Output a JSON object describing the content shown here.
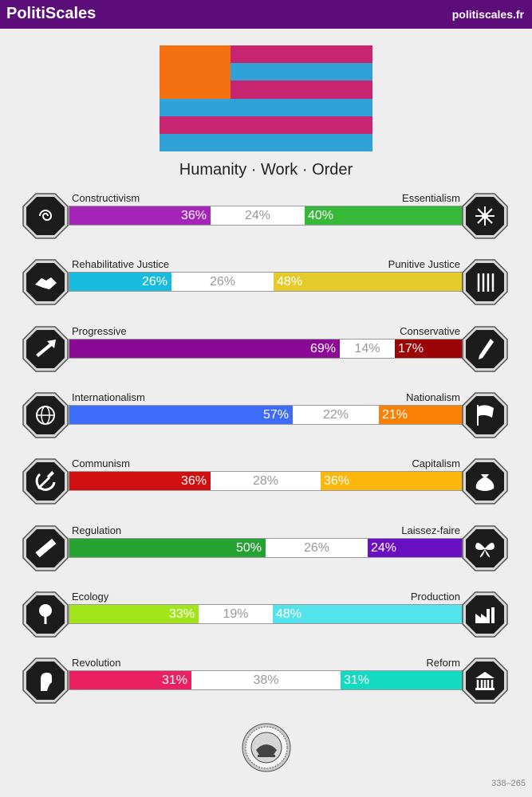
{
  "header": {
    "brand": "PolitiScales",
    "site": "politiscales.fr"
  },
  "flag": {
    "stripes": [
      "#c7256f",
      "#31a2d8",
      "#c7256f",
      "#31a2d8",
      "#c7256f",
      "#31a2d8"
    ],
    "canton": "#f57010"
  },
  "ideology_title": "Humanity · Work · Order",
  "axes": [
    {
      "left_label": "Constructivism",
      "right_label": "Essentialism",
      "left_value": 36,
      "neutral_value": 24,
      "right_value": 40,
      "left_text": "36%",
      "neutral_text": "24%",
      "right_text": "40%",
      "left_color": "#a425b8",
      "right_color": "#36b838",
      "left_icon": "mind-spiral-icon",
      "right_icon": "flower-dna-icon"
    },
    {
      "left_label": "Rehabilitative Justice",
      "right_label": "Punitive Justice",
      "left_value": 26,
      "neutral_value": 26,
      "right_value": 48,
      "left_text": "26%",
      "neutral_text": "26%",
      "right_text": "48%",
      "left_color": "#17bbe0",
      "right_color": "#e4cb29",
      "left_icon": "handshake-icon",
      "right_icon": "prison-bars-icon"
    },
    {
      "left_label": "Progressive",
      "right_label": "Conservative",
      "left_value": 69,
      "neutral_value": 14,
      "right_value": 17,
      "left_text": "69%",
      "neutral_text": "14%",
      "right_text": "17%",
      "left_color": "#8a0a96",
      "right_color": "#9c0505",
      "left_icon": "forward-arrow-icon",
      "right_icon": "quill-pen-icon"
    },
    {
      "left_label": "Internationalism",
      "right_label": "Nationalism",
      "left_value": 57,
      "neutral_value": 22,
      "right_value": 21,
      "left_text": "57%",
      "neutral_text": "22%",
      "right_text": "21%",
      "left_color": "#3e6bf7",
      "right_color": "#fb8105",
      "left_icon": "globe-icon",
      "right_icon": "flag-icon"
    },
    {
      "left_label": "Communism",
      "right_label": "Capitalism",
      "left_value": 36,
      "neutral_value": 28,
      "right_value": 36,
      "left_text": "36%",
      "neutral_text": "28%",
      "right_text": "36%",
      "left_color": "#d01010",
      "right_color": "#fbb70b",
      "left_icon": "hammer-sickle-icon",
      "right_icon": "money-bag-icon"
    },
    {
      "left_label": "Regulation",
      "right_label": "Laissez-faire",
      "left_value": 50,
      "neutral_value": 26,
      "right_value": 24,
      "left_text": "50%",
      "neutral_text": "26%",
      "right_text": "24%",
      "left_color": "#26a232",
      "right_color": "#6b0fc2",
      "left_icon": "ruler-icon",
      "right_icon": "butterfly-icon"
    },
    {
      "left_label": "Ecology",
      "right_label": "Production",
      "left_value": 33,
      "neutral_value": 19,
      "right_value": 48,
      "left_text": "33%",
      "neutral_text": "19%",
      "right_text": "48%",
      "left_color": "#a2e51b",
      "right_color": "#53e3eb",
      "left_icon": "tree-icon",
      "right_icon": "factory-icon"
    },
    {
      "left_label": "Revolution",
      "right_label": "Reform",
      "left_value": 31,
      "neutral_value": 38,
      "right_value": 31,
      "left_text": "31%",
      "neutral_text": "38%",
      "right_text": "31%",
      "left_color": "#ea2063",
      "right_color": "#12dbc1",
      "left_icon": "raised-fist-icon",
      "right_icon": "parliament-icon"
    }
  ],
  "seal_icon": "seal-badge-icon",
  "footer": "338–265"
}
